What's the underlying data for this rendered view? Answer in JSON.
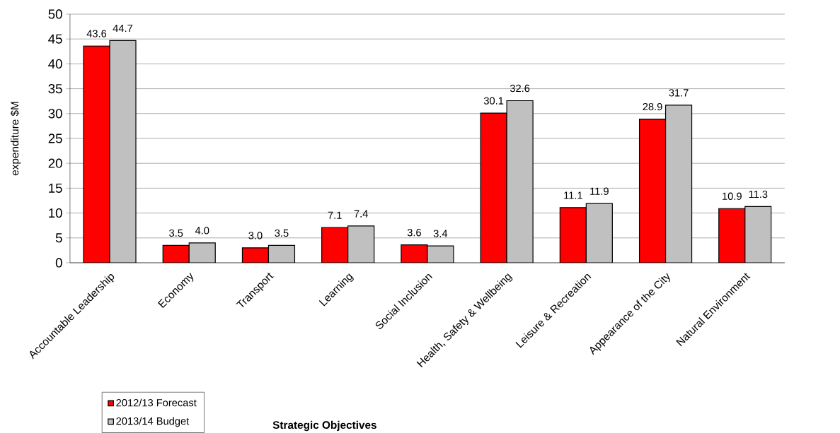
{
  "chart_data": {
    "type": "bar",
    "xlabel": "Strategic Objectives",
    "ylabel": "expenditure $M",
    "categories": [
      "Accountable Leadership",
      "Economy",
      "Transport",
      "Learning",
      "Social Inclusion",
      "Health, Safety & Wellbeing",
      "Leisure &  Recreation",
      "Appearance of the City",
      "Natural Environment"
    ],
    "series": [
      {
        "name": "2012/13 Forecast",
        "color": "#ff0000",
        "values": [
          43.6,
          3.5,
          3.0,
          7.1,
          3.6,
          30.1,
          11.1,
          28.9,
          10.9
        ],
        "value_labels": [
          "43.6",
          "3.5",
          "3.0",
          "7.1",
          "3.6",
          "30.1",
          "11.1",
          "28.9",
          "10.9"
        ]
      },
      {
        "name": "2013/14 Budget",
        "color": "#c0c0c0",
        "values": [
          44.7,
          4.0,
          3.5,
          7.4,
          3.4,
          32.6,
          11.9,
          31.7,
          11.3
        ],
        "value_labels": [
          "44.7",
          "4.0",
          "3.5",
          "7.4",
          "3.4",
          "32.6",
          "11.9",
          "31.7",
          "11.3"
        ]
      }
    ],
    "ylim": [
      0,
      50
    ],
    "yticks": [
      0,
      5,
      10,
      15,
      20,
      25,
      30,
      35,
      40,
      45,
      50
    ],
    "grid": "y",
    "legend": "bottom left"
  }
}
